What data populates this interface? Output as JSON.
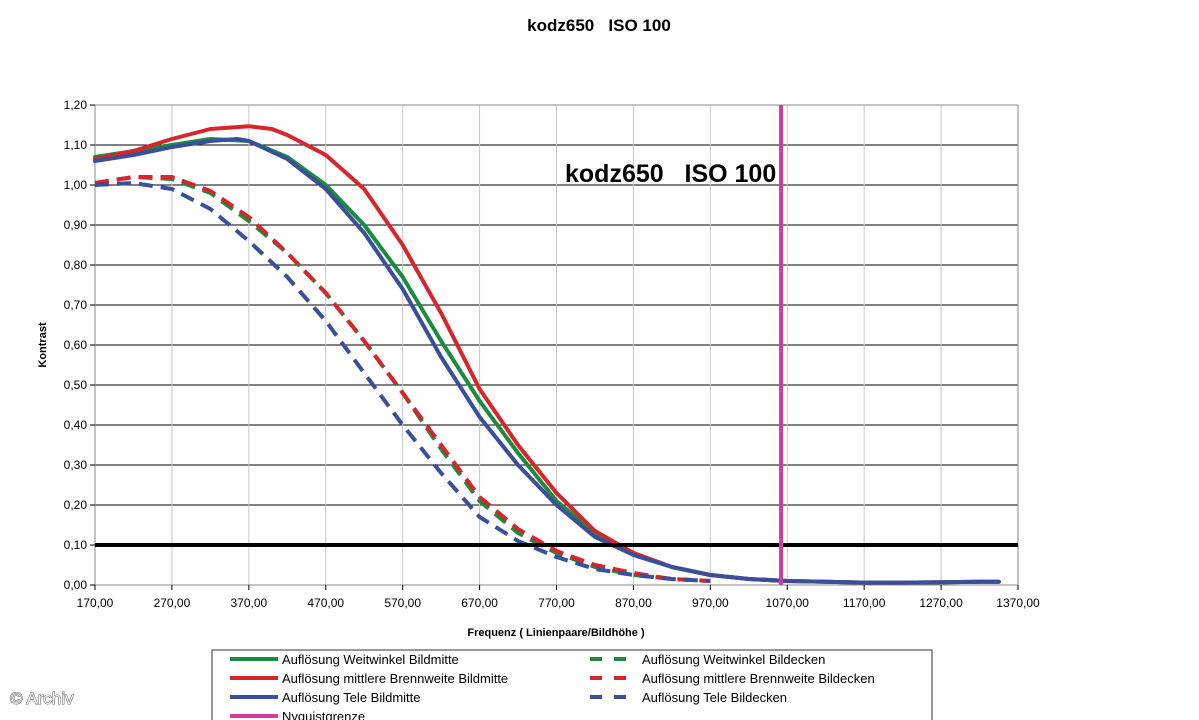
{
  "chart_data": {
    "type": "line",
    "title": "kodz650   ISO 100",
    "inner_title": "kodz650   ISO 100",
    "xlabel": "Frequenz ( Linienpaare/Bildhöhe )",
    "ylabel": "Kontrast",
    "xlim": [
      170,
      1370
    ],
    "ylim": [
      0,
      1.2
    ],
    "x_ticks": [
      "170,00",
      "270,00",
      "370,00",
      "470,00",
      "570,00",
      "670,00",
      "770,00",
      "870,00",
      "970,00",
      "1070,00",
      "1170,00",
      "1270,00",
      "1370,00"
    ],
    "y_ticks": [
      "0,00",
      "0,10",
      "0,20",
      "0,30",
      "0,40",
      "0,50",
      "0,60",
      "0,70",
      "0,80",
      "0,90",
      "1,00",
      "1,10",
      "1,20"
    ],
    "grid": "horizontal",
    "reference_lines": {
      "threshold_y": 0.1,
      "nyquist_x": 1062,
      "nyquist_color": "#d63a9e"
    },
    "series": [
      {
        "name": "Auflösung Weitwinkel Bildmitte",
        "color": "#1a8c3c",
        "dash": "solid",
        "x": [
          170,
          220,
          270,
          320,
          370,
          420,
          470,
          520,
          570,
          620,
          670,
          720,
          770,
          820,
          870,
          920,
          970,
          1020,
          1070,
          1120,
          1170,
          1220,
          1270,
          1320,
          1345
        ],
        "y": [
          1.07,
          1.085,
          1.1,
          1.115,
          1.11,
          1.07,
          1.0,
          0.9,
          0.77,
          0.61,
          0.46,
          0.33,
          0.21,
          0.13,
          0.08,
          0.045,
          0.025,
          0.015,
          0.01,
          0.008,
          0.006,
          0.006,
          0.007,
          0.008,
          0.008
        ]
      },
      {
        "name": "Auflösung mittlere Brennweite Bildmitte",
        "color": "#d8242b",
        "dash": "solid",
        "x": [
          170,
          220,
          270,
          320,
          370,
          400,
          420,
          470,
          520,
          570,
          620,
          670,
          720,
          770,
          820,
          870,
          920,
          970,
          1020,
          1070,
          1120,
          1170,
          1220,
          1270,
          1320,
          1345
        ],
        "y": [
          1.065,
          1.085,
          1.115,
          1.14,
          1.147,
          1.14,
          1.125,
          1.075,
          0.99,
          0.85,
          0.68,
          0.49,
          0.35,
          0.23,
          0.135,
          0.08,
          0.045,
          0.025,
          0.015,
          0.01,
          0.008,
          0.006,
          0.006,
          0.007,
          0.008,
          0.008
        ]
      },
      {
        "name": "Auflösung Tele Bildmitte",
        "color": "#3a4f9c",
        "dash": "solid",
        "x": [
          170,
          220,
          270,
          320,
          355,
          370,
          420,
          470,
          520,
          570,
          620,
          670,
          720,
          770,
          820,
          870,
          920,
          970,
          1020,
          1070,
          1120,
          1170,
          1220,
          1270,
          1320,
          1345
        ],
        "y": [
          1.06,
          1.075,
          1.095,
          1.11,
          1.115,
          1.11,
          1.065,
          0.99,
          0.88,
          0.74,
          0.57,
          0.42,
          0.3,
          0.2,
          0.12,
          0.075,
          0.045,
          0.025,
          0.015,
          0.01,
          0.008,
          0.006,
          0.006,
          0.007,
          0.008,
          0.008
        ]
      },
      {
        "name": "Auflösung Weitwinkel Bildecken",
        "color": "#1a8c3c",
        "dash": "dashed",
        "x": [
          170,
          220,
          270,
          320,
          370,
          420,
          470,
          520,
          570,
          620,
          670,
          720,
          770,
          820,
          870,
          920,
          970
        ],
        "y": [
          1.005,
          1.02,
          1.015,
          0.98,
          0.91,
          0.83,
          0.73,
          0.61,
          0.48,
          0.34,
          0.21,
          0.13,
          0.08,
          0.045,
          0.025,
          0.015,
          0.01
        ]
      },
      {
        "name": "Auflösung mittlere Brennweite Bildecken",
        "color": "#d8242b",
        "dash": "dashed",
        "x": [
          170,
          220,
          270,
          320,
          370,
          420,
          470,
          520,
          570,
          620,
          670,
          720,
          770,
          820,
          870,
          920,
          970
        ],
        "y": [
          1.005,
          1.02,
          1.02,
          0.985,
          0.92,
          0.83,
          0.73,
          0.61,
          0.48,
          0.35,
          0.22,
          0.14,
          0.085,
          0.05,
          0.03,
          0.015,
          0.01
        ]
      },
      {
        "name": "Auflösung Tele Bildecken",
        "color": "#3a4f9c",
        "dash": "dashed",
        "x": [
          170,
          220,
          270,
          320,
          370,
          420,
          470,
          520,
          570,
          620,
          670,
          720,
          770,
          820,
          870,
          920,
          970
        ],
        "y": [
          1.0,
          1.005,
          0.99,
          0.94,
          0.86,
          0.77,
          0.66,
          0.53,
          0.4,
          0.28,
          0.17,
          0.11,
          0.07,
          0.04,
          0.025,
          0.015,
          0.01
        ]
      }
    ],
    "legend": [
      {
        "label": "Auflösung Weitwinkel Bildmitte",
        "color": "#1a8c3c",
        "dash": "solid"
      },
      {
        "label": "Auflösung Weitwinkel Bildecken",
        "color": "#1a8c3c",
        "dash": "dashed"
      },
      {
        "label": "Auflösung mittlere Brennweite Bildmitte",
        "color": "#d8242b",
        "dash": "solid"
      },
      {
        "label": "Auflösung mittlere Brennweite Bildecken",
        "color": "#d8242b",
        "dash": "dashed"
      },
      {
        "label": "Auflösung Tele Bildmitte",
        "color": "#3a4f9c",
        "dash": "solid"
      },
      {
        "label": "Auflösung Tele Bildecken",
        "color": "#3a4f9c",
        "dash": "dashed"
      },
      {
        "label": "Nyquistgrenze",
        "color": "#d63a9e",
        "dash": "solid"
      }
    ]
  },
  "watermark": "© Archiv"
}
